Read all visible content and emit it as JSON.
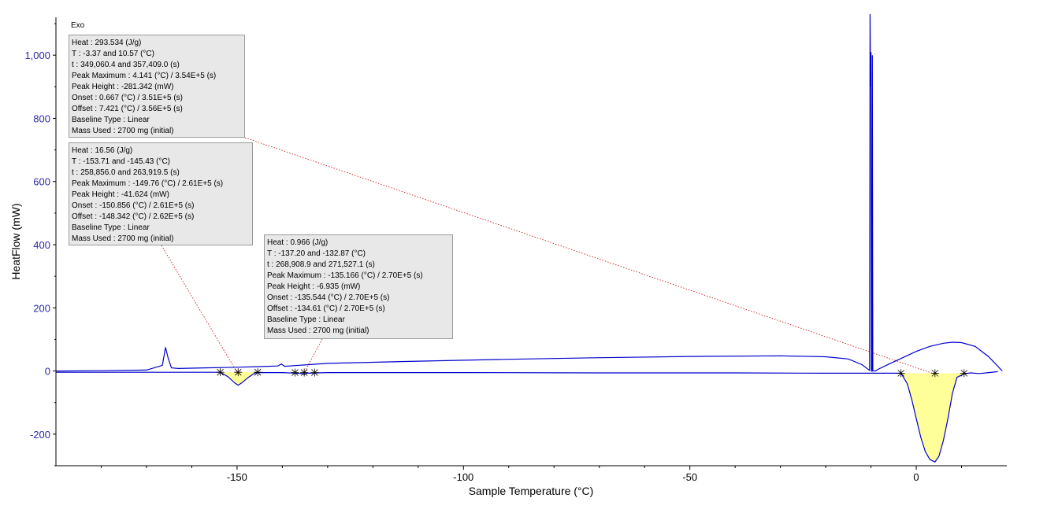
{
  "chart_data": {
    "type": "line",
    "title": "",
    "corner_label": "Exo",
    "xlabel": "Sample Temperature (°C)",
    "ylabel": "HeatFlow (mW)",
    "xlim": [
      -190,
      20
    ],
    "ylim": [
      -300,
      1120
    ],
    "x_ticks": [
      -150,
      -100,
      -50,
      0
    ],
    "x_tick_labels": [
      "-150",
      "-100",
      "-50",
      "0"
    ],
    "y_ticks": [
      -200,
      0,
      200,
      400,
      600,
      800,
      1000
    ],
    "y_tick_labels": [
      "-200",
      "0",
      "200",
      "400",
      "600",
      "800",
      "1,000"
    ],
    "grid": false,
    "line_color": "#0000cc",
    "fill_color": "#ffff99",
    "series": [
      {
        "name": "",
        "x": [
          -190,
          -180,
          -170,
          -166.5,
          -165.8,
          -165.2,
          -164.5,
          -163,
          -160,
          -150,
          -145,
          -141,
          -140.2,
          -139.5,
          -130,
          -110,
          -90,
          -70,
          -50,
          -30,
          -20,
          -15,
          -12,
          -10.3,
          -10.2,
          -10.1,
          -10.0,
          -9.9,
          -9.8,
          -9.7,
          -9.6,
          -9.0,
          -8.5,
          -6,
          -3,
          0,
          3,
          6,
          8,
          10,
          13,
          16,
          19
        ],
        "y": [
          0,
          1,
          3,
          18,
          75,
          40,
          10,
          8,
          9,
          12,
          14,
          16,
          22,
          15,
          24,
          31,
          37,
          42,
          46,
          48,
          45,
          38,
          20,
          2,
          1130,
          900,
          1010,
          2,
          0,
          1000,
          1,
          0,
          5,
          22,
          42,
          62,
          78,
          88,
          91,
          90,
          78,
          45,
          0
        ]
      },
      {
        "name": "",
        "x": [
          -190,
          -160,
          -153.7,
          -152,
          -150.5,
          -149.76,
          -149,
          -147.5,
          -146,
          -145.43,
          -140,
          -135.5,
          -135.166,
          -134.6,
          -130,
          -100,
          -70,
          -40,
          -20,
          -10,
          -3.37,
          -2,
          -1,
          0,
          1,
          2,
          3,
          4.141,
          5,
          6,
          7,
          8,
          9,
          10.57,
          12,
          14,
          16,
          18
        ],
        "y": [
          -4,
          -4,
          -4,
          -18,
          -38,
          -45,
          -38,
          -20,
          -6,
          -5,
          -5,
          -8,
          -11,
          -7,
          -5,
          -5,
          -6,
          -6,
          -7,
          -7,
          -7,
          -40,
          -90,
          -150,
          -210,
          -255,
          -280,
          -288,
          -270,
          -220,
          -150,
          -70,
          -20,
          -9,
          -6,
          -8,
          -5,
          -2
        ]
      }
    ],
    "peaks": [
      {
        "x_start": -153.71,
        "x_end": -145.43,
        "peak_x": -149.76,
        "peak_y": -45,
        "baseline_y": -4
      },
      {
        "x_start": -137.2,
        "x_end": -132.87,
        "peak_x": -135.166,
        "peak_y": -11,
        "baseline_y": -5
      },
      {
        "x_start": -3.37,
        "x_end": 10.57,
        "peak_x": 4.141,
        "peak_y": -288,
        "baseline_y": -7
      }
    ],
    "annotations": [
      {
        "lines": [
          "Heat :  293.534  (J/g)",
          "T :  -3.37 and 10.57  (°C)",
          "t :  349,060.4 and 357,409.0  (s)",
          "Peak Maximum :  4.141  (°C) / 3.54E+5  (s)",
          "Peak Height :  -281.342  (mW)",
          "Onset :  0.667  (°C) / 3.51E+5  (s)",
          "Offset :  7.421  (°C) / 3.56E+5  (s)",
          "Baseline Type :  Linear",
          "Mass Used :  2700 mg  (initial)"
        ],
        "target_x": 4.141,
        "target_y": -10
      },
      {
        "lines": [
          "Heat :  16.56  (J/g)",
          "T :  -153.71 and -145.43  (°C)",
          "t :  258,856.0 and 263,919.5  (s)",
          "Peak Maximum :  -149.76  (°C) / 2.61E+5  (s)",
          "Peak Height :  -41.624  (mW)",
          "Onset :  -150.856  (°C) / 2.61E+5  (s)",
          "Offset :  -148.342  (°C) / 2.62E+5  (s)",
          "Baseline Type :  Linear",
          "Mass Used :  2700 mg  (initial)"
        ],
        "target_x": -149.76,
        "target_y": -10
      },
      {
        "lines": [
          "Heat :  0.966  (J/g)",
          "T :  -137.20 and -132.87  (°C)",
          "t :  268,908.9 and 271,527.1  (s)",
          "Peak Maximum :  -135.166  (°C) / 2.70E+5  (s)",
          "Peak Height :  -6.935  (mW)",
          "Onset :  -135.544  (°C) / 2.70E+5  (s)",
          "Offset :  -134.61  (°C) / 2.70E+5  (s)",
          "Baseline Type :  Linear",
          "Mass Used :  2700 mg  (initial)"
        ],
        "target_x": -135.166,
        "target_y": -5
      }
    ]
  }
}
